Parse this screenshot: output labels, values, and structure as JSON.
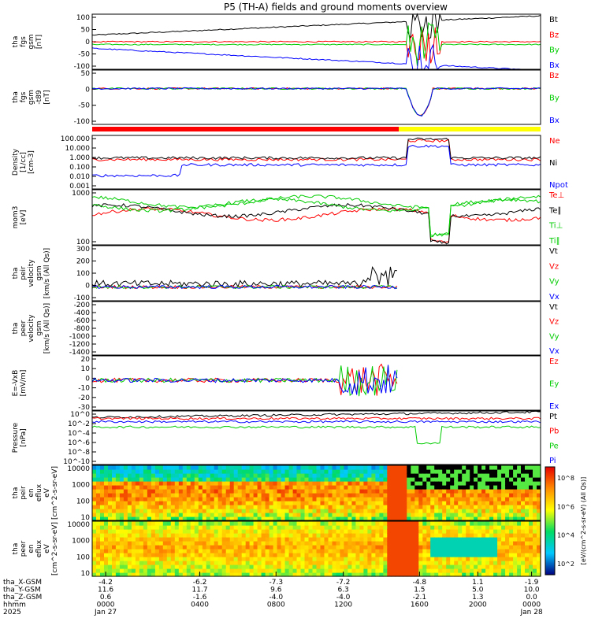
{
  "chart_data": {
    "type": "line",
    "title": "P5 (TH-A) fields and ground moments overview",
    "x": {
      "tick_hhmm": [
        "0000",
        "0400",
        "0800",
        "1200",
        "1600",
        "2000",
        "0000"
      ],
      "date_labels": [
        "Jan 27",
        "",
        "",
        "",
        "",
        "",
        "Jan 28"
      ],
      "year": "2025",
      "rows": [
        {
          "label": "tha_X-GSM",
          "values": [
            "-4.2",
            "-6.2",
            "-7.3",
            "-7.2",
            "-4.8",
            "1.1",
            "-1.9"
          ]
        },
        {
          "label": "tha_Y-GSM",
          "values": [
            "11.6",
            "11.7",
            "9.6",
            "6.3",
            "1.5",
            "5.0",
            "10.0"
          ]
        },
        {
          "label": "tha_Z-GSM",
          "values": [
            "0.6",
            "-1.6",
            "-4.0",
            "-4.0",
            "-2.1",
            "1.3",
            "0.0"
          ]
        },
        {
          "label": "hhmm",
          "values": [
            "0000",
            "0400",
            "0800",
            "1200",
            "1600",
            "2000",
            "0000"
          ]
        },
        {
          "label": "2025",
          "values": [
            "Jan 27",
            "",
            "",
            "",
            "",
            "",
            "Jan 28"
          ]
        }
      ]
    },
    "panels": [
      {
        "id": "p1",
        "ylabel": [
          "tha",
          "fgs",
          "gsm",
          "[nT]"
        ],
        "yticks": [
          "100",
          "50",
          "0",
          "-50",
          "-100"
        ],
        "scale": "linear",
        "ylim": [
          -100,
          100
        ],
        "legend": [
          {
            "name": "Bt",
            "color": "#000000"
          },
          {
            "name": "Bz",
            "color": "#ff0000"
          },
          {
            "name": "By",
            "color": "#00cc00"
          },
          {
            "name": "Bx",
            "color": "#0000ff"
          }
        ]
      },
      {
        "id": "p2",
        "ylabel": [
          "tha",
          "fgs",
          "gsm",
          "-t89",
          "[nT]"
        ],
        "yticks": [
          "50",
          "0",
          "-50",
          "-100"
        ],
        "scale": "linear",
        "ylim": [
          -120,
          60
        ],
        "legend": [
          {
            "name": "Bz",
            "color": "#ff0000"
          },
          {
            "name": "By",
            "color": "#00cc00"
          },
          {
            "name": "Bx",
            "color": "#0000ff"
          }
        ]
      },
      {
        "id": "p3",
        "ylabel": [
          "Density",
          "[1/cc]",
          "[cm-3]"
        ],
        "yticks": [
          "100.000",
          "10.000",
          "1.000",
          "0.100",
          "0.010",
          "0.001"
        ],
        "scale": "log",
        "legend": [
          {
            "name": "Ne",
            "color": "#ff0000"
          },
          {
            "name": "Ni",
            "color": "#000000"
          },
          {
            "name": "Npot",
            "color": "#0000ff"
          }
        ]
      },
      {
        "id": "p4",
        "ylabel": [
          "mom3",
          "[eV]"
        ],
        "yticks": [
          "1000",
          "100"
        ],
        "scale": "log",
        "legend": [
          {
            "name": "Te⊥",
            "color": "#ff0000"
          },
          {
            "name": "Te∥",
            "color": "#000000"
          },
          {
            "name": "Ti⊥",
            "color": "#00cc00"
          },
          {
            "name": "Ti∥",
            "color": "#00cc00"
          }
        ]
      },
      {
        "id": "p5",
        "ylabel": [
          "tha",
          "peir",
          "velocity",
          "gsm",
          "[km/s (All Qs)]"
        ],
        "yticks": [
          "300",
          "200",
          "100",
          "0",
          "-100"
        ],
        "scale": "linear",
        "ylim": [
          -120,
          350
        ],
        "legend": [
          {
            "name": "Vt",
            "color": "#000000"
          },
          {
            "name": "Vz",
            "color": "#ff0000"
          },
          {
            "name": "Vy",
            "color": "#00cc00"
          },
          {
            "name": "Vx",
            "color": "#0000ff"
          }
        ]
      },
      {
        "id": "p6",
        "ylabel": [
          "tha",
          "peer",
          "velocity",
          "gsm",
          "[km/s (All Qs)]"
        ],
        "yticks": [
          "-200",
          "-400",
          "-600",
          "-800",
          "-1000",
          "-1200",
          "-1400"
        ],
        "scale": "linear",
        "legend": [
          {
            "name": "Vt",
            "color": "#000000"
          },
          {
            "name": "Vz",
            "color": "#ff0000"
          },
          {
            "name": "Vy",
            "color": "#00cc00"
          },
          {
            "name": "Vx",
            "color": "#0000ff"
          }
        ]
      },
      {
        "id": "p7",
        "ylabel": [
          "E=-VxB",
          "[mV/m]"
        ],
        "yticks": [
          "20",
          "10",
          "0",
          "-10",
          "-20",
          "-30"
        ],
        "scale": "linear",
        "ylim": [
          -32,
          25
        ],
        "legend": [
          {
            "name": "Ez",
            "color": "#ff0000"
          },
          {
            "name": "Ey",
            "color": "#00cc00"
          },
          {
            "name": "Ex",
            "color": "#0000ff"
          }
        ]
      },
      {
        "id": "p8",
        "ylabel": [
          "Pressure",
          "[nPa]"
        ],
        "yticks": [
          "10^0",
          "10^-2",
          "10^-4",
          "10^-6",
          "10^-8",
          "10^-10"
        ],
        "scale": "log",
        "legend": [
          {
            "name": "Pt",
            "color": "#000000"
          },
          {
            "name": "Pb",
            "color": "#ff0000"
          },
          {
            "name": "Pe",
            "color": "#00cc00"
          },
          {
            "name": "Pi",
            "color": "#0000ff"
          }
        ]
      },
      {
        "id": "p9",
        "ylabel": [
          "tha",
          "peir",
          "en",
          "eflux",
          "eV",
          "[cm^2-s-sr-eV]"
        ],
        "yticks": [
          "10000",
          "1000",
          "100",
          "10"
        ],
        "scale": "log",
        "type": "spectrogram"
      },
      {
        "id": "p10",
        "ylabel": [
          "tha",
          "peer",
          "en",
          "eflux",
          "eV",
          "[cm^2-s-sr-eV]"
        ],
        "yticks": [
          "10000",
          "1000",
          "100",
          "10"
        ],
        "scale": "log",
        "type": "spectrogram"
      }
    ],
    "colorbar": {
      "ticks": [
        "10^8",
        "10^6",
        "10^4",
        "10^2"
      ],
      "label": "[eV/(cm^2-s-sr-eV) (All Qs)]"
    },
    "status_bar": {
      "segments": [
        {
          "color": "#ff0000",
          "until_hhmm": "1650"
        },
        {
          "color": "#ffff00",
          "until_hhmm": "2400"
        }
      ]
    }
  }
}
